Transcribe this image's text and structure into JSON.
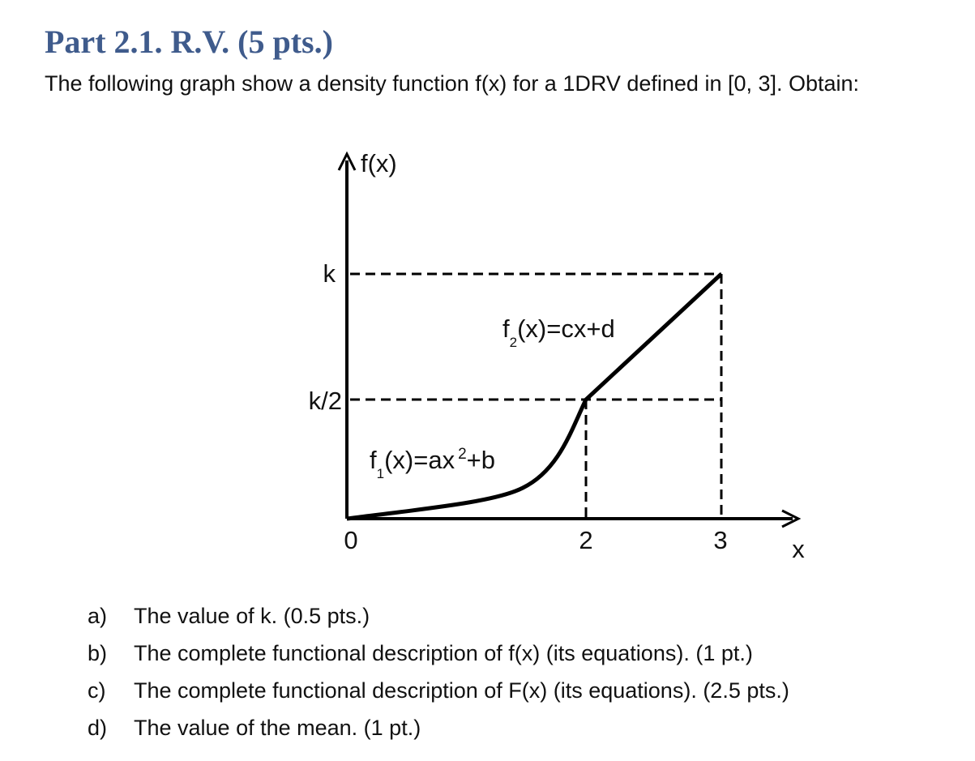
{
  "header": {
    "title": "Part 2.1. R.V. (5 pts.)",
    "intro": "The following graph show a density function f(x) for a 1DRV defined in [0, 3]. Obtain:"
  },
  "diagram": {
    "y_axis_label": "f(x)",
    "x_axis_label": "x",
    "y_labels": [
      "k",
      "k/2"
    ],
    "x_labels": [
      "0",
      "2",
      "3"
    ],
    "f1_label": {
      "base": "f",
      "sub": "1",
      "main": "(x)=ax",
      "sup": "2",
      "tail": "+b"
    },
    "f2_label": {
      "base": "f",
      "sub": "2",
      "main": "(x)=cx+d"
    }
  },
  "questions": [
    {
      "marker": "a)",
      "text": "The value of k. (0.5 pts.)"
    },
    {
      "marker": "b)",
      "text": "The complete functional description of f(x) (its equations). (1 pt.)"
    },
    {
      "marker": "c)",
      "text": "The complete functional description of F(x) (its equations). (2.5 pts.)"
    },
    {
      "marker": "d)",
      "text": "The value of the mean. (1 pt.)"
    }
  ]
}
